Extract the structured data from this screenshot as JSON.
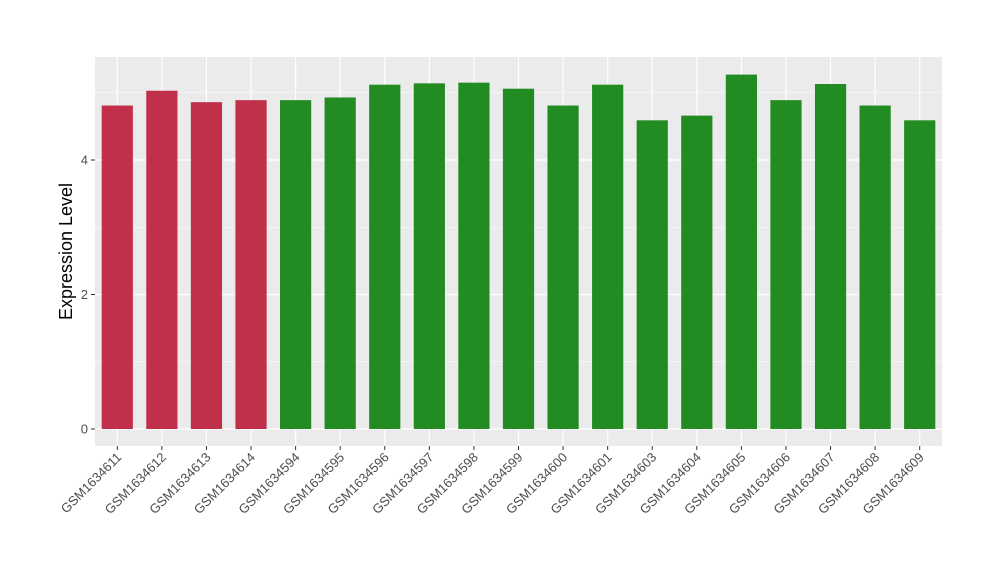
{
  "chart_data": {
    "type": "bar",
    "title": "",
    "xlabel": "",
    "ylabel": "Expression Level",
    "ylim": [
      0,
      5.5
    ],
    "yticks": [
      0,
      2,
      4
    ],
    "grid": true,
    "legend": "none",
    "categories": [
      "GSM1634611",
      "GSM1634612",
      "GSM1634613",
      "GSM1634614",
      "GSM1634594",
      "GSM1634595",
      "GSM1634596",
      "GSM1634597",
      "GSM1634598",
      "GSM1634599",
      "GSM1634600",
      "GSM1634601",
      "GSM1634603",
      "GSM1634604",
      "GSM1634605",
      "GSM1634606",
      "GSM1634607",
      "GSM1634608",
      "GSM1634609"
    ],
    "values": [
      4.81,
      5.03,
      4.86,
      4.89,
      4.89,
      4.93,
      5.12,
      5.14,
      5.15,
      5.06,
      4.81,
      5.12,
      4.59,
      4.66,
      5.27,
      4.89,
      5.13,
      4.81,
      4.59
    ],
    "colors": [
      "#C0304A",
      "#C0304A",
      "#C0304A",
      "#C0304A",
      "#228B22",
      "#228B22",
      "#228B22",
      "#228B22",
      "#228B22",
      "#228B22",
      "#228B22",
      "#228B22",
      "#228B22",
      "#228B22",
      "#228B22",
      "#228B22",
      "#228B22",
      "#228B22",
      "#228B22"
    ],
    "panel_color": "#EBEBEB",
    "grid_color": "#FFFFFF"
  }
}
